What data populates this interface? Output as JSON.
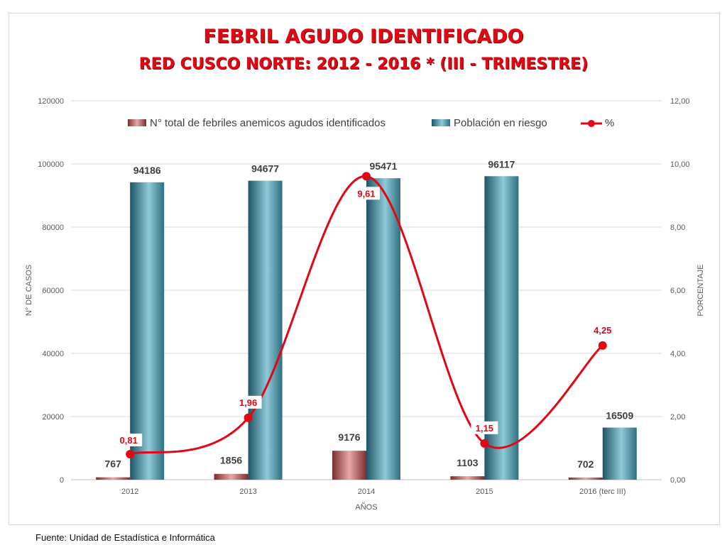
{
  "page": {
    "title": "FEBRIL AGUDO IDENTIFICADO",
    "subtitle": "RED CUSCO NORTE: 2012 - 2016 * (III - TRIMESTRE)",
    "footer": "Fuente: Unidad de Estadística e Informática"
  },
  "chart_data": {
    "type": "bar",
    "categories": [
      "2012",
      "2013",
      "2014",
      "2015",
      "2016 (terc III)"
    ],
    "series": [
      {
        "name": "N° total de febriles anemicos agudos identificados",
        "type": "bar",
        "axis": "left",
        "values": [
          767,
          1856,
          9176,
          1103,
          702
        ],
        "color": "#a85a5a"
      },
      {
        "name": "Población en riesgo",
        "type": "bar",
        "axis": "left",
        "values": [
          94186,
          94677,
          95471,
          96117,
          16509
        ],
        "color": "#3f8596"
      },
      {
        "name": "%",
        "type": "line",
        "axis": "right",
        "values": [
          0.81,
          1.96,
          9.61,
          1.15,
          4.25
        ],
        "labels": [
          "0,81",
          "1,96",
          "9,61",
          "1,15",
          "4,25"
        ],
        "color": "#e30613"
      }
    ],
    "xlabel": "AÑOS",
    "ylabel": "N° DE CASOS",
    "y2label": "PORCENTAJE",
    "ylim": [
      0,
      120000
    ],
    "yticks": [
      "0",
      "20000",
      "40000",
      "60000",
      "80000",
      "100000",
      "120000"
    ],
    "y2lim": [
      0,
      12
    ],
    "y2ticks": [
      "0,00",
      "2,00",
      "4,00",
      "6,00",
      "8,00",
      "10,00",
      "12,00"
    ],
    "grid": true,
    "legend_position": "top"
  }
}
